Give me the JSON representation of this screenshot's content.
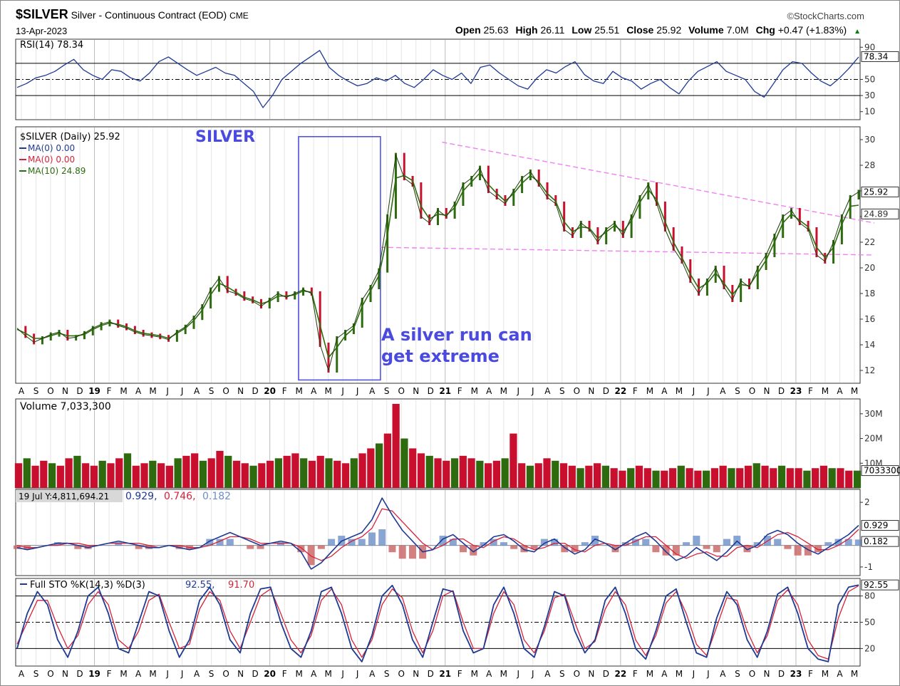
{
  "header": {
    "symbol": "$SILVER",
    "description": "Silver - Continuous Contract (EOD)",
    "exchange": "CME",
    "date": "13-Apr-2023",
    "brand": "©StockCharts.com",
    "quote": [
      {
        "label": "Open",
        "value": "25.63"
      },
      {
        "label": "High",
        "value": "26.11"
      },
      {
        "label": "Low",
        "value": "25.51"
      },
      {
        "label": "Close",
        "value": "25.92"
      },
      {
        "label": "Volume",
        "value": "7.0M"
      },
      {
        "label": "Chg",
        "value": "+0.47 (+1.83%)"
      }
    ],
    "chg_arrow": "▲",
    "chg_color": "#008000"
  },
  "colors": {
    "price_up": "#2d6b0e",
    "price_down": "#c8102e",
    "blue_line": "#1f3a93",
    "red_line": "#d6223a",
    "annotation": "#4a4ae0",
    "trendline": "#ee82ee",
    "histogram": "#6b8fc7"
  },
  "time_axis": {
    "labels": [
      "A",
      "S",
      "O",
      "N",
      "D",
      "19",
      "F",
      "M",
      "A",
      "M",
      "J",
      "J",
      "A",
      "S",
      "O",
      "N",
      "D",
      "20",
      "F",
      "M",
      "A",
      "M",
      "J",
      "J",
      "A",
      "S",
      "O",
      "N",
      "D",
      "21",
      "F",
      "M",
      "A",
      "M",
      "J",
      "J",
      "A",
      "S",
      "O",
      "N",
      "D",
      "22",
      "F",
      "M",
      "A",
      "M",
      "J",
      "J",
      "A",
      "S",
      "O",
      "N",
      "D",
      "23",
      "F",
      "M",
      "A",
      "M"
    ],
    "year_labels": [
      "19",
      "20",
      "21",
      "22",
      "23"
    ]
  },
  "chart_data": [
    {
      "type": "line",
      "panel": "rsi",
      "legend": "RSI(14) 78.34",
      "last_value_label": "78.34",
      "ylim": [
        0,
        100
      ],
      "y_ticks": [
        90,
        50,
        30,
        10
      ],
      "y_tick_labels": [
        "90",
        "50",
        "30",
        "10"
      ],
      "reference_lines": [
        70,
        30
      ],
      "midline": 50,
      "series": [
        {
          "name": "RSI(14)",
          "values": [
            40,
            45,
            52,
            55,
            60,
            68,
            75,
            62,
            55,
            50,
            62,
            60,
            52,
            48,
            58,
            72,
            78,
            70,
            62,
            55,
            60,
            65,
            58,
            55,
            45,
            35,
            15,
            30,
            50,
            60,
            70,
            78,
            86,
            65,
            55,
            48,
            42,
            45,
            52,
            48,
            55,
            45,
            40,
            50,
            62,
            55,
            50,
            58,
            45,
            65,
            68,
            58,
            50,
            42,
            38,
            52,
            62,
            58,
            66,
            72,
            56,
            48,
            45,
            60,
            52,
            48,
            38,
            45,
            50,
            40,
            32,
            48,
            60,
            66,
            72,
            60,
            55,
            50,
            35,
            28,
            45,
            62,
            72,
            70,
            58,
            48,
            42,
            52,
            64,
            78
          ]
        }
      ]
    },
    {
      "type": "line",
      "panel": "price",
      "title": "SILVER",
      "legend": [
        "$SILVER (Daily) 25.92",
        "MA(0) 0.00",
        "MA(0) 0.00",
        "MA(10) 24.89"
      ],
      "last_value_labels": [
        "25.92",
        "24.89"
      ],
      "ylim": [
        11,
        31
      ],
      "y_ticks": [
        30,
        28,
        26,
        24,
        22,
        20,
        18,
        16,
        14,
        12
      ],
      "y_tick_labels": [
        "30",
        "28",
        "26",
        "24",
        "22",
        "20",
        "18",
        "16",
        "14",
        "12"
      ],
      "annotation": [
        "A silver run can",
        "get extreme"
      ],
      "highlight_box": {
        "x_range": [
          "2020-03",
          "2020-09"
        ],
        "y_range": [
          11.7,
          29.9
        ]
      },
      "trendlines": [
        {
          "from": [
            "2020-12",
            29.8
          ],
          "to": [
            "2023-05",
            23.5
          ]
        },
        {
          "from": [
            "2020-09",
            21.6
          ],
          "to": [
            "2023-05",
            21.0
          ]
        }
      ],
      "series": [
        {
          "name": "$SILVER (Daily)",
          "values": [
            15.3,
            14.7,
            14.2,
            14.5,
            14.8,
            15.0,
            14.5,
            14.6,
            14.9,
            15.3,
            15.6,
            15.8,
            15.5,
            15.3,
            15.0,
            14.8,
            14.7,
            14.6,
            14.4,
            15.0,
            15.4,
            16.1,
            17.0,
            18.3,
            19.2,
            18.2,
            18.0,
            17.6,
            17.4,
            17.0,
            17.5,
            18.0,
            17.7,
            18.0,
            18.3,
            18.0,
            14.0,
            12.0,
            14.5,
            15.0,
            15.5,
            17.5,
            18.5,
            19.8,
            24.0,
            28.8,
            27.0,
            26.5,
            24.0,
            23.5,
            24.5,
            24.0,
            25.0,
            26.5,
            27.0,
            27.8,
            26.0,
            25.5,
            25.0,
            26.0,
            27.0,
            27.5,
            26.5,
            25.5,
            25.0,
            23.0,
            22.5,
            23.5,
            23.0,
            22.0,
            23.0,
            23.5,
            22.5,
            24.0,
            25.5,
            26.5,
            25.0,
            23.0,
            21.5,
            20.5,
            19.0,
            18.0,
            19.0,
            20.0,
            18.5,
            17.5,
            19.0,
            18.5,
            20.0,
            21.0,
            22.5,
            24.0,
            24.5,
            23.5,
            23.0,
            21.0,
            20.5,
            22.0,
            24.0,
            25.5,
            25.92
          ]
        },
        {
          "name": "MA(10)",
          "values": [
            15.2,
            14.9,
            14.5,
            14.5,
            14.7,
            14.9,
            14.7,
            14.7,
            14.8,
            15.2,
            15.5,
            15.7,
            15.6,
            15.4,
            15.1,
            14.9,
            14.8,
            14.7,
            14.5,
            14.9,
            15.3,
            15.9,
            16.7,
            17.9,
            18.8,
            18.5,
            18.1,
            17.7,
            17.5,
            17.2,
            17.4,
            17.8,
            17.8,
            17.9,
            18.2,
            18.1,
            15.5,
            13.0,
            13.8,
            14.7,
            15.3,
            17.0,
            18.2,
            19.4,
            22.5,
            27.0,
            27.2,
            26.8,
            24.8,
            23.8,
            24.2,
            24.1,
            24.7,
            26.0,
            26.7,
            27.4,
            26.5,
            25.8,
            25.2,
            25.8,
            26.6,
            27.2,
            26.7,
            25.8,
            25.2,
            23.6,
            22.8,
            23.2,
            23.1,
            22.3,
            22.8,
            23.3,
            22.8,
            23.7,
            25.1,
            26.1,
            25.3,
            23.6,
            22.0,
            20.8,
            19.5,
            18.4,
            18.8,
            19.6,
            18.8,
            17.9,
            18.7,
            18.6,
            19.6,
            20.6,
            22.0,
            23.5,
            24.2,
            23.7,
            23.2,
            21.6,
            20.8,
            21.6,
            23.4,
            24.8,
            24.89
          ]
        }
      ]
    },
    {
      "type": "bar",
      "panel": "volume",
      "legend": "Volume 7,033,300",
      "last_value_label": "7033300",
      "ylim": [
        0,
        36000000
      ],
      "y_ticks": [
        30000000,
        20000000,
        10000000
      ],
      "y_tick_labels": [
        "30M",
        "20M",
        "10M"
      ],
      "series": [
        {
          "name": "Volume",
          "values": [
            10,
            12,
            9,
            11,
            10,
            9,
            12,
            13,
            10,
            9,
            11,
            10,
            12,
            14,
            9,
            10,
            11,
            10,
            9,
            12,
            13,
            14,
            11,
            12,
            15,
            13,
            11,
            10,
            9,
            10,
            11,
            12,
            13,
            14,
            12,
            11,
            13,
            12,
            11,
            10,
            12,
            14,
            16,
            18,
            22,
            34,
            20,
            16,
            14,
            13,
            12,
            11,
            12,
            13,
            12,
            11,
            10,
            11,
            12,
            22,
            10,
            9,
            10,
            12,
            11,
            10,
            9,
            8,
            9,
            10,
            9,
            8,
            7,
            8,
            9,
            8,
            7,
            7,
            8,
            9,
            8,
            7,
            7,
            8,
            9,
            8,
            8,
            9,
            10,
            9,
            8,
            9,
            8,
            8,
            7,
            8,
            9,
            8,
            8,
            7,
            7
          ]
        }
      ]
    },
    {
      "type": "line",
      "panel": "macd",
      "legend_prefix": "19 Jul Y:4,811,694.21",
      "legend_values": [
        "0.929",
        "0.746",
        "0.182"
      ],
      "last_value_labels": [
        "0.929",
        "0.182"
      ],
      "ylim": [
        -1.4,
        2.6
      ],
      "y_ticks": [
        2,
        -1
      ],
      "y_tick_labels": [
        "2",
        "-1"
      ],
      "series": [
        {
          "name": "MACD",
          "values": [
            -0.1,
            -0.2,
            -0.1,
            0.0,
            0.1,
            0.1,
            0.0,
            -0.1,
            0.0,
            0.1,
            0.2,
            0.1,
            0.0,
            -0.1,
            -0.1,
            0.0,
            -0.1,
            -0.2,
            -0.1,
            0.2,
            0.4,
            0.6,
            0.4,
            0.2,
            0.0,
            0.1,
            0.2,
            0.1,
            -0.3,
            -1.1,
            -0.8,
            -0.3,
            0.2,
            0.4,
            0.6,
            1.2,
            2.2,
            1.4,
            0.7,
            0.2,
            -0.3,
            -0.2,
            0.3,
            0.5,
            0.1,
            -0.3,
            0.0,
            0.4,
            0.5,
            0.2,
            -0.2,
            -0.3,
            0.1,
            0.3,
            -0.1,
            -0.4,
            -0.2,
            0.3,
            0.1,
            -0.2,
            0.1,
            0.4,
            0.6,
            0.2,
            -0.3,
            -0.7,
            -0.5,
            -0.1,
            -0.4,
            -0.7,
            -0.3,
            0.2,
            -0.2,
            0.0,
            0.5,
            0.7,
            0.5,
            0.1,
            -0.2,
            -0.4,
            -0.1,
            0.2,
            0.5,
            0.929
          ]
        },
        {
          "name": "Signal",
          "values": [
            0.0,
            -0.1,
            -0.1,
            0.0,
            0.0,
            0.1,
            0.1,
            0.0,
            0.0,
            0.1,
            0.1,
            0.1,
            0.1,
            0.0,
            -0.1,
            0.0,
            0.0,
            -0.1,
            -0.1,
            0.0,
            0.2,
            0.4,
            0.4,
            0.3,
            0.1,
            0.1,
            0.1,
            0.1,
            -0.1,
            -0.5,
            -0.7,
            -0.5,
            -0.1,
            0.2,
            0.4,
            0.8,
            1.7,
            1.6,
            1.1,
            0.6,
            0.1,
            -0.2,
            0.0,
            0.3,
            0.3,
            0.0,
            -0.1,
            0.2,
            0.4,
            0.3,
            0.0,
            -0.2,
            -0.1,
            0.1,
            0.1,
            -0.2,
            -0.3,
            0.0,
            0.1,
            0.0,
            0.0,
            0.2,
            0.4,
            0.4,
            0.0,
            -0.4,
            -0.6,
            -0.4,
            -0.3,
            -0.5,
            -0.5,
            -0.1,
            0.0,
            -0.1,
            0.2,
            0.5,
            0.6,
            0.4,
            0.1,
            -0.2,
            -0.2,
            0.0,
            0.3,
            0.746
          ]
        }
      ]
    },
    {
      "type": "line",
      "panel": "stochastic",
      "legend_prefix": "Full STO %K(14,3) %D(3)",
      "legend_values": [
        "92.55",
        "91.70"
      ],
      "last_value_label": "92.55",
      "ylim": [
        0,
        100
      ],
      "y_ticks": [
        80,
        50,
        20
      ],
      "y_tick_labels": [
        "80",
        "50",
        "20"
      ],
      "reference_lines": [
        80,
        20
      ],
      "midline": 50,
      "series": [
        {
          "name": "%K",
          "values": [
            20,
            60,
            85,
            70,
            30,
            10,
            40,
            80,
            90,
            60,
            20,
            15,
            50,
            85,
            80,
            40,
            10,
            30,
            75,
            90,
            70,
            30,
            15,
            60,
            88,
            90,
            50,
            20,
            10,
            40,
            85,
            90,
            60,
            20,
            5,
            35,
            80,
            92,
            70,
            30,
            10,
            50,
            88,
            85,
            40,
            15,
            20,
            70,
            90,
            60,
            20,
            10,
            45,
            85,
            80,
            40,
            15,
            30,
            75,
            90,
            60,
            20,
            8,
            40,
            80,
            88,
            50,
            15,
            10,
            55,
            85,
            70,
            30,
            10,
            40,
            82,
            90,
            60,
            20,
            8,
            5,
            70,
            90,
            92.55
          ]
        },
        {
          "name": "%D",
          "values": [
            25,
            50,
            75,
            75,
            45,
            20,
            35,
            70,
            85,
            70,
            30,
            20,
            40,
            75,
            82,
            50,
            20,
            25,
            65,
            85,
            75,
            40,
            20,
            50,
            80,
            88,
            60,
            30,
            15,
            35,
            75,
            88,
            70,
            30,
            10,
            30,
            70,
            88,
            78,
            40,
            15,
            40,
            80,
            86,
            50,
            20,
            20,
            60,
            85,
            70,
            30,
            15,
            40,
            78,
            82,
            50,
            20,
            28,
            65,
            85,
            70,
            30,
            12,
            35,
            72,
            85,
            60,
            25,
            12,
            45,
            78,
            75,
            40,
            15,
            35,
            75,
            87,
            70,
            30,
            12,
            8,
            55,
            85,
            91.7
          ]
        }
      ]
    }
  ]
}
